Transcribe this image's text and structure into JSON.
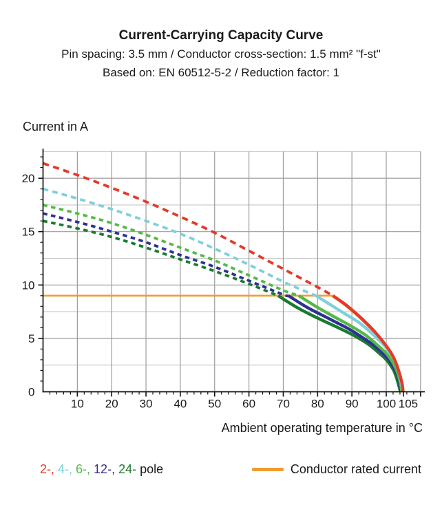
{
  "header": {
    "title": "Current-Carrying Capacity Curve",
    "subtitle1": "Pin spacing: 3.5 mm / Conductor cross-section: 1.5 mm² \"f-st\"",
    "subtitle2": "Based on: EN 60512-5-2 / Reduction factor: 1"
  },
  "chart_data": {
    "type": "line",
    "xlabel": "Ambient operating temperature in °C",
    "ylabel": "Current in A",
    "xlim": [
      0,
      110.5
    ],
    "ylim": [
      0,
      22.8
    ],
    "x_tick_labels": [
      10,
      20,
      30,
      40,
      50,
      60,
      70,
      80,
      90,
      100,
      105
    ],
    "y_tick_labels": [
      0,
      5,
      10,
      15,
      20
    ],
    "x_minor_step": 2,
    "y_minor_step": 1,
    "grid": {
      "x_lines": [
        10,
        20,
        30,
        40,
        50,
        60,
        70,
        80,
        90,
        100,
        110
      ],
      "y_major": [
        5,
        10,
        15,
        20
      ],
      "y_minor": [
        2.5,
        7.5,
        12.5,
        17.5,
        22.5
      ]
    },
    "colors": {
      "grid_major": "#9b9b9b",
      "grid_minor": "#c6c6c6",
      "axis": "#111111",
      "text": "#1a1a1a"
    },
    "rated_current": {
      "label": "Conductor rated current",
      "value": 9,
      "x_start": 0,
      "x_end": 84.5,
      "color": "#ef9c30"
    },
    "series": [
      {
        "name": "2-pole",
        "poles": 2,
        "color": "#e23b2a",
        "dashed": [
          [
            0,
            21.4
          ],
          [
            10,
            20.3
          ],
          [
            20,
            19.1
          ],
          [
            30,
            17.8
          ],
          [
            40,
            16.4
          ],
          [
            50,
            14.9
          ],
          [
            60,
            13.2
          ],
          [
            70,
            11.5
          ],
          [
            80,
            9.8
          ],
          [
            84.5,
            9.0
          ]
        ],
        "solid": [
          [
            84.5,
            9.0
          ],
          [
            88,
            8.2
          ],
          [
            91,
            7.4
          ],
          [
            94,
            6.5
          ],
          [
            97,
            5.5
          ],
          [
            100,
            4.3
          ],
          [
            102,
            3.3
          ],
          [
            103.5,
            2.1
          ],
          [
            104.6,
            0.8
          ],
          [
            104.9,
            0
          ]
        ]
      },
      {
        "name": "4-pole",
        "poles": 4,
        "color": "#7fd0da",
        "dashed": [
          [
            0,
            19.0
          ],
          [
            10,
            18.1
          ],
          [
            20,
            17.1
          ],
          [
            30,
            16.0
          ],
          [
            40,
            14.8
          ],
          [
            50,
            13.4
          ],
          [
            60,
            11.9
          ],
          [
            70,
            10.3
          ],
          [
            75,
            9.6
          ],
          [
            79.5,
            9.0
          ]
        ],
        "solid": [
          [
            79.5,
            9.0
          ],
          [
            84,
            8.1
          ],
          [
            88,
            7.3
          ],
          [
            92,
            6.5
          ],
          [
            95,
            5.7
          ],
          [
            98,
            4.8
          ],
          [
            100,
            4.1
          ],
          [
            102,
            3.2
          ],
          [
            103.6,
            2.0
          ],
          [
            104.5,
            0.7
          ],
          [
            104.7,
            0
          ]
        ]
      },
      {
        "name": "6-pole",
        "poles": 6,
        "color": "#56b848",
        "dashed": [
          [
            0,
            17.5
          ],
          [
            10,
            16.7
          ],
          [
            20,
            15.8
          ],
          [
            30,
            14.7
          ],
          [
            40,
            13.5
          ],
          [
            50,
            12.3
          ],
          [
            60,
            10.9
          ],
          [
            70,
            9.5
          ],
          [
            74.5,
            9.0
          ]
        ],
        "solid": [
          [
            74.5,
            9.0
          ],
          [
            80,
            7.9
          ],
          [
            85,
            7.0
          ],
          [
            90,
            6.1
          ],
          [
            94,
            5.3
          ],
          [
            97,
            4.5
          ],
          [
            100,
            3.6
          ],
          [
            102,
            2.7
          ],
          [
            103.4,
            1.7
          ],
          [
            104.3,
            0.5
          ],
          [
            104.5,
            0
          ]
        ]
      },
      {
        "name": "12-pole",
        "poles": 12,
        "color": "#2e3192",
        "dashed": [
          [
            0,
            16.7
          ],
          [
            10,
            15.9
          ],
          [
            20,
            15.0
          ],
          [
            30,
            14.0
          ],
          [
            40,
            12.8
          ],
          [
            50,
            11.7
          ],
          [
            60,
            10.4
          ],
          [
            70,
            9.1
          ],
          [
            71.5,
            9.0
          ]
        ],
        "solid": [
          [
            71.5,
            9.0
          ],
          [
            77,
            7.9
          ],
          [
            83,
            6.9
          ],
          [
            89,
            5.9
          ],
          [
            93,
            5.1
          ],
          [
            97,
            4.2
          ],
          [
            100,
            3.3
          ],
          [
            102,
            2.4
          ],
          [
            103.3,
            1.5
          ],
          [
            104.1,
            0.4
          ],
          [
            104.3,
            0
          ]
        ]
      },
      {
        "name": "24-pole",
        "poles": 24,
        "color": "#197b30",
        "dashed": [
          [
            0,
            16.0
          ],
          [
            10,
            15.3
          ],
          [
            20,
            14.5
          ],
          [
            30,
            13.5
          ],
          [
            40,
            12.4
          ],
          [
            50,
            11.3
          ],
          [
            60,
            10.1
          ],
          [
            68.5,
            9.0
          ]
        ],
        "solid": [
          [
            68.5,
            9.0
          ],
          [
            74,
            7.9
          ],
          [
            80,
            6.9
          ],
          [
            86,
            6.0
          ],
          [
            91,
            5.2
          ],
          [
            95,
            4.4
          ],
          [
            98,
            3.6
          ],
          [
            100,
            3.0
          ],
          [
            102,
            2.1
          ],
          [
            103,
            1.3
          ],
          [
            103.9,
            0.3
          ],
          [
            104.1,
            0
          ]
        ]
      }
    ]
  },
  "legend": {
    "pole_parts": [
      {
        "text": "2-,",
        "color": "#e23b2a"
      },
      {
        "text": "4-,",
        "color": "#7fd0da"
      },
      {
        "text": "6-,",
        "color": "#56b848"
      },
      {
        "text": "12-,",
        "color": "#2e3192"
      },
      {
        "text": "24-",
        "color": "#197b30"
      }
    ],
    "pole_suffix": "pole"
  }
}
